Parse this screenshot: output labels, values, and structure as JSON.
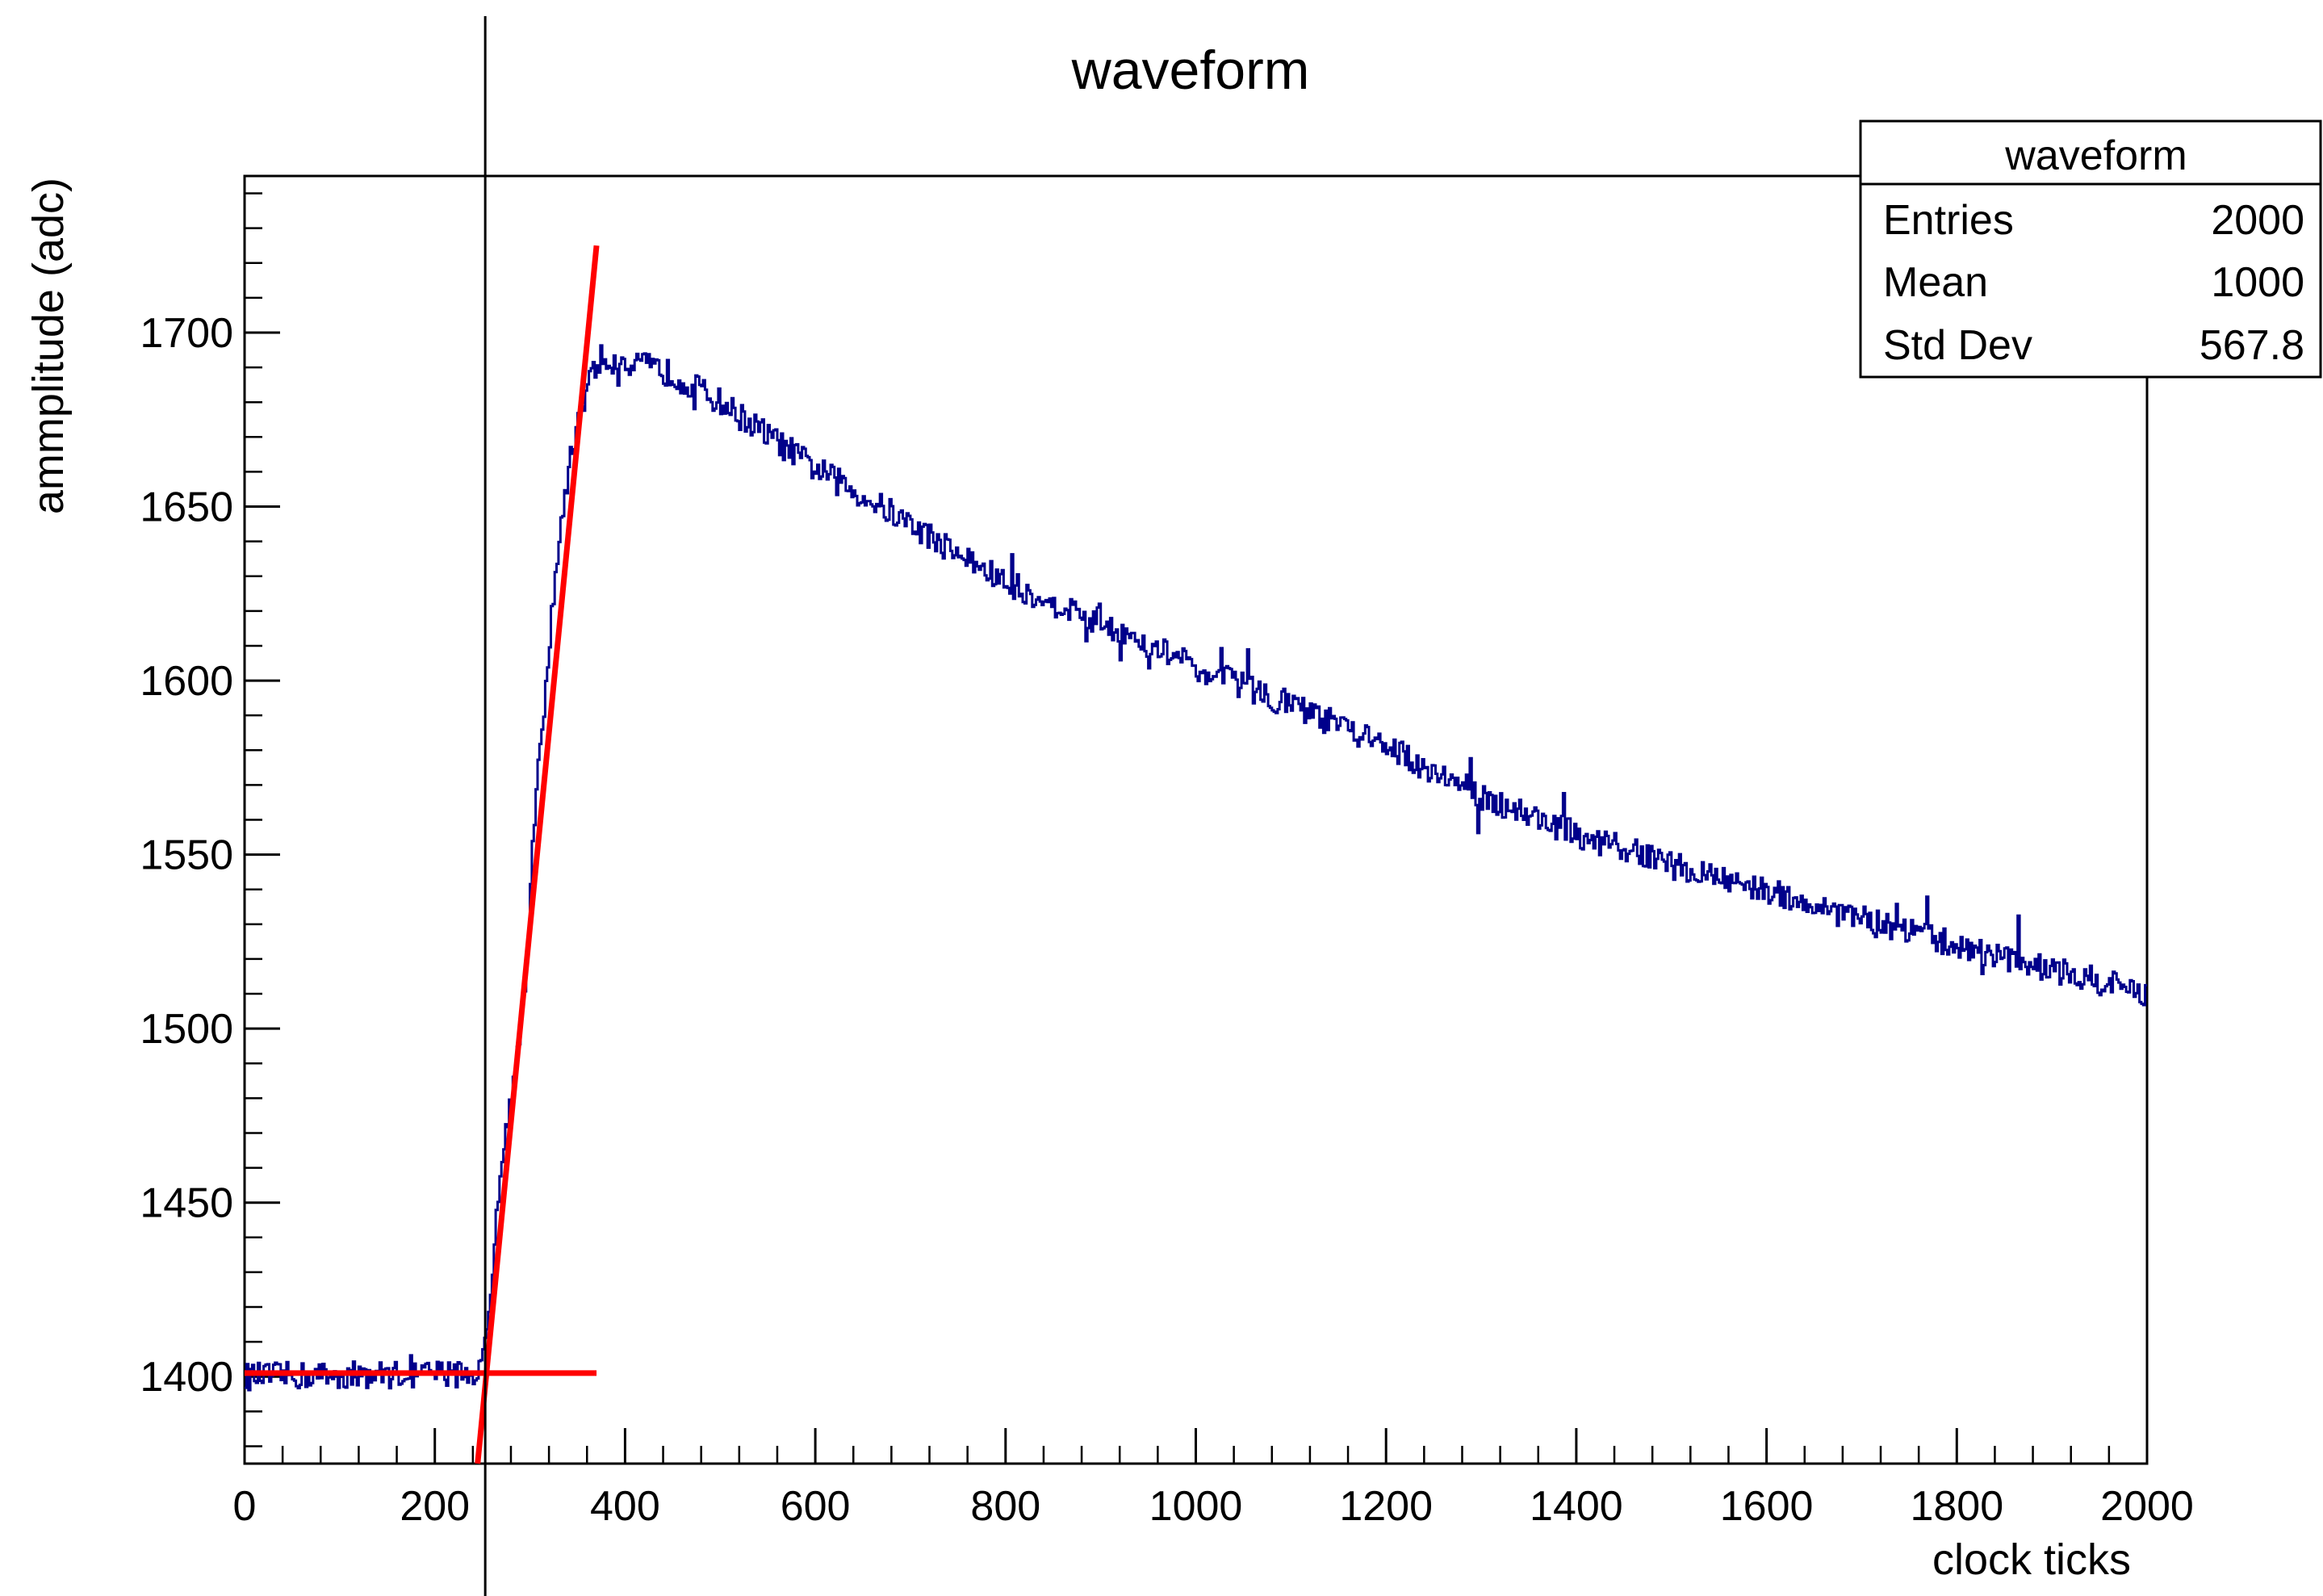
{
  "chart_data": {
    "type": "line",
    "title": "waveform",
    "xlabel": "clock ticks",
    "ylabel": "ammplitude (adc)",
    "xlim": [
      0,
      2000
    ],
    "ylim": [
      1375,
      1745
    ],
    "x_ticks": [
      0,
      200,
      400,
      600,
      800,
      1000,
      1200,
      1400,
      1600,
      1800,
      2000
    ],
    "x_tick_labels": [
      "0",
      "200",
      "400",
      "600",
      "800",
      "1000",
      "1200",
      "1400",
      "1600",
      "1800",
      "2000"
    ],
    "y_ticks": [
      1400,
      1450,
      1500,
      1550,
      1600,
      1650,
      1700
    ],
    "y_tick_labels": [
      "1400",
      "1450",
      "1500",
      "1550",
      "1600",
      "1650",
      "1700"
    ],
    "grid": false,
    "cursor_x": 253,
    "series": [
      {
        "style": "histogram-step",
        "color": "#00008b",
        "anchors": [
          [
            0,
            1400
          ],
          [
            240,
            1401
          ],
          [
            250,
            1402
          ],
          [
            258,
            1420
          ],
          [
            265,
            1450
          ],
          [
            280,
            1480
          ],
          [
            295,
            1510
          ],
          [
            305,
            1560
          ],
          [
            320,
            1610
          ],
          [
            335,
            1650
          ],
          [
            350,
            1675
          ],
          [
            365,
            1688
          ],
          [
            380,
            1692
          ],
          [
            400,
            1692
          ],
          [
            450,
            1688
          ],
          [
            500,
            1680
          ],
          [
            600,
            1661
          ],
          [
            700,
            1645
          ],
          [
            800,
            1628
          ],
          [
            900,
            1617
          ],
          [
            1000,
            1604
          ],
          [
            1100,
            1593
          ],
          [
            1200,
            1581
          ],
          [
            1300,
            1567
          ],
          [
            1400,
            1556
          ],
          [
            1500,
            1547
          ],
          [
            1600,
            1540
          ],
          [
            1700,
            1531
          ],
          [
            1800,
            1524
          ],
          [
            1900,
            1517
          ],
          [
            2000,
            1510
          ]
        ],
        "noise_amplitude_adc": 4
      }
    ],
    "fit_lines": [
      {
        "name": "baseline",
        "color": "#ff0000",
        "x": [
          0,
          370
        ],
        "y": [
          1401,
          1401
        ]
      },
      {
        "name": "rise",
        "color": "#ff0000",
        "x": [
          245,
          370
        ],
        "y": [
          1375,
          1725
        ]
      }
    ],
    "stats_box": {
      "title": "waveform",
      "rows": [
        {
          "label": "Entries",
          "value": "2000"
        },
        {
          "label": "Mean",
          "value": "1000"
        },
        {
          "label": "Std Dev",
          "value": "567.8"
        }
      ]
    }
  }
}
